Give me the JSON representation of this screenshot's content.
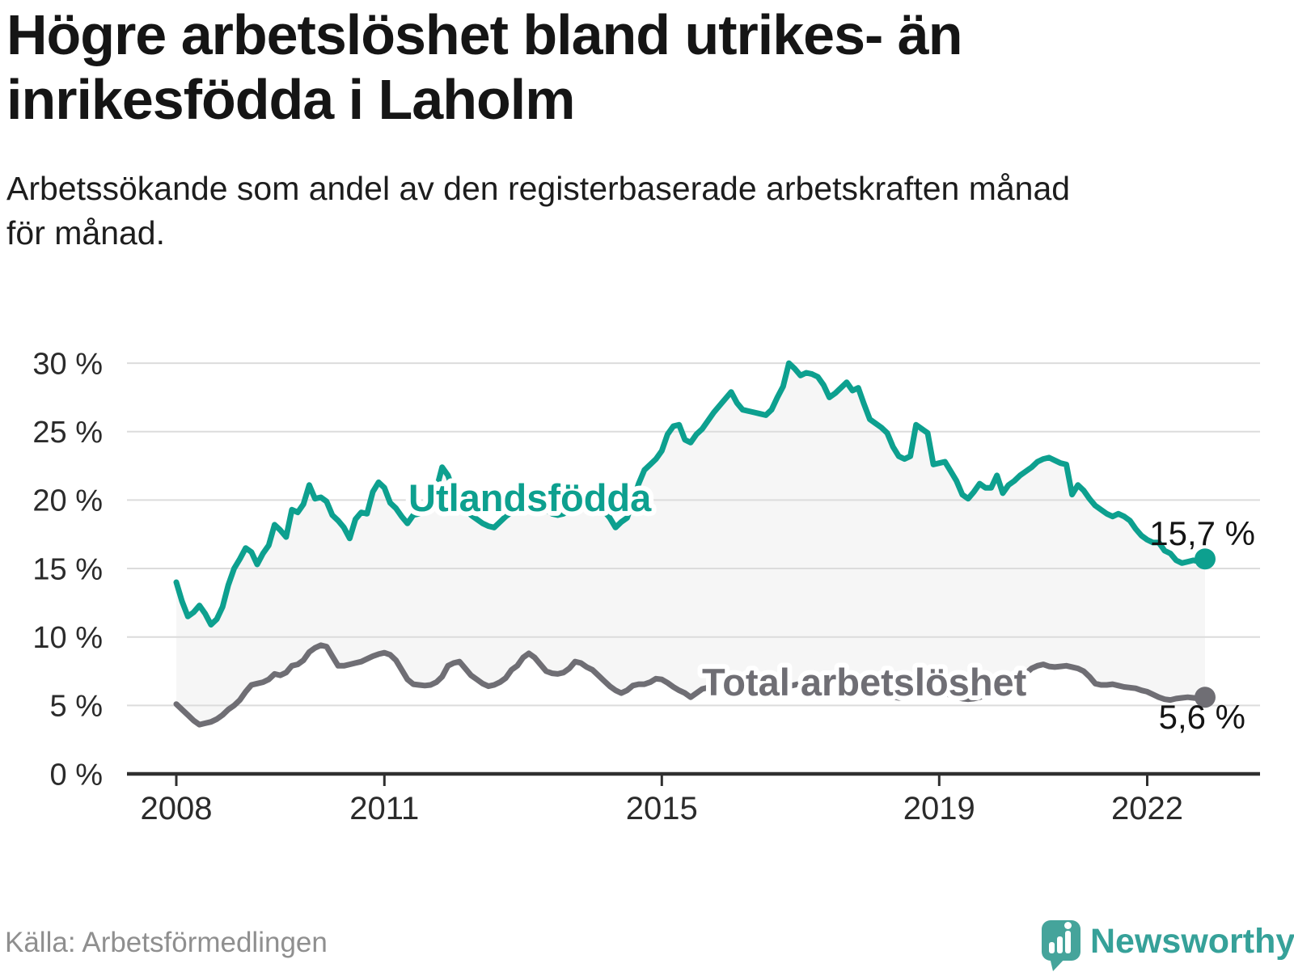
{
  "header": {
    "title": "Högre arbetslöshet bland utrikes- än\ninrikesfödda i Laholm",
    "subtitle": "Arbetssökande som andel av den registerbaserade arbetskraften månad\nför månad."
  },
  "footer": {
    "source": "Källa: Arbetsförmedlingen",
    "brand": "Newsworthy"
  },
  "colors": {
    "accent_teal": "#0da08f",
    "neutral_gray": "#6f6e74",
    "brand_teal": "#45a49b",
    "brand_text_teal": "#36a199",
    "gridline": "#dcdcdc",
    "axis": "#2f2f2f",
    "fill_between": "#f6f6f6",
    "title_text": "#151515",
    "source_text": "#8f8f8f"
  },
  "chart_data": {
    "type": "line",
    "x_frequency": "monthly",
    "x_start": "2008-01",
    "x_end": "2022-11",
    "points_per_series": 179,
    "x_tick_labels": [
      "2008",
      "2011",
      "2015",
      "2019",
      "2022"
    ],
    "x_tick_month_index": [
      0,
      36,
      84,
      132,
      168
    ],
    "y_tick_labels": [
      "0 %",
      "5 %",
      "10 %",
      "15 %",
      "20 %",
      "25 %",
      "30 %"
    ],
    "y_tick_values": [
      0,
      5,
      10,
      15,
      20,
      25,
      30
    ],
    "ylim": [
      0,
      31.8
    ],
    "grid": "horizontal",
    "legend": "inline-labels",
    "fill_between": true,
    "series": [
      {
        "name": "Utlandsfödda",
        "color": "#0da08f",
        "end_label": "15,7 %",
        "end_value": 15.7,
        "values": [
          14,
          12.6,
          11.5,
          11.8,
          12.3,
          11.7,
          10.9,
          11.3,
          12.2,
          13.8,
          15,
          15.7,
          16.5,
          16.2,
          15.3,
          16.1,
          16.7,
          18.2,
          17.8,
          17.3,
          19.3,
          19.1,
          19.7,
          21.1,
          20.1,
          20.2,
          19.9,
          18.9,
          18.5,
          18,
          17.2,
          18.6,
          19.1,
          19,
          20.6,
          21.3,
          20.9,
          19.8,
          19.4,
          18.8,
          18.3,
          18.9,
          19,
          19.3,
          19.8,
          20.8,
          22.4,
          21.8,
          20.6,
          19.8,
          19.3,
          18.9,
          18.6,
          18.3,
          18.1,
          18,
          18.4,
          18.8,
          19.1,
          19.5,
          19.9,
          20.2,
          19.9,
          19.6,
          19.3,
          19,
          18.9,
          19,
          19.3,
          19.6,
          19.9,
          20.1,
          20,
          19.7,
          19.2,
          18.7,
          18,
          18.4,
          18.7,
          19.9,
          21.2,
          22.2,
          22.6,
          23,
          23.6,
          24.8,
          25.4,
          25.5,
          24.4,
          24.2,
          24.8,
          25.2,
          25.8,
          26.4,
          26.9,
          27.4,
          27.9,
          27.1,
          26.6,
          26.5,
          26.4,
          26.3,
          26.2,
          26.6,
          27.5,
          28.3,
          30,
          29.6,
          29.1,
          29.3,
          29.2,
          29,
          28.4,
          27.5,
          27.8,
          28.2,
          28.6,
          28,
          28.2,
          27,
          25.9,
          25.6,
          25.3,
          24.9,
          23.9,
          23.2,
          23,
          23.2,
          25.5,
          25.2,
          24.9,
          22.6,
          22.7,
          22.8,
          22.1,
          21.4,
          20.4,
          20.1,
          20.6,
          21.2,
          20.9,
          20.9,
          21.8,
          20.5,
          21.1,
          21.4,
          21.8,
          22.1,
          22.4,
          22.8,
          23,
          23.1,
          22.9,
          22.7,
          22.6,
          20.4,
          21.1,
          20.7,
          20.1,
          19.6,
          19.3,
          19,
          18.8,
          19,
          18.8,
          18.5,
          17.9,
          17.4,
          17.1,
          16.9,
          16.9,
          16.3,
          16.1,
          15.6,
          15.4,
          15.5,
          15.6,
          15.5,
          15.7
        ]
      },
      {
        "name": "Total arbetslöshet",
        "color": "#6f6e74",
        "end_label": "5,6 %",
        "end_value": 5.6,
        "values": [
          5.1,
          4.7,
          4.3,
          3.9,
          3.6,
          3.7,
          3.8,
          4,
          4.3,
          4.7,
          5,
          5.4,
          6,
          6.5,
          6.6,
          6.7,
          6.9,
          7.3,
          7.2,
          7.4,
          7.9,
          8,
          8.3,
          8.9,
          9.2,
          9.4,
          9.3,
          8.6,
          7.9,
          7.9,
          8,
          8.1,
          8.2,
          8.4,
          8.6,
          8.75,
          8.85,
          8.7,
          8.3,
          7.6,
          6.9,
          6.55,
          6.5,
          6.45,
          6.5,
          6.7,
          7.1,
          7.9,
          8.1,
          8.2,
          7.7,
          7.2,
          6.9,
          6.6,
          6.4,
          6.5,
          6.7,
          7,
          7.6,
          7.9,
          8.5,
          8.8,
          8.5,
          8,
          7.5,
          7.35,
          7.3,
          7.4,
          7.7,
          8.2,
          8.1,
          7.8,
          7.6,
          7.2,
          6.8,
          6.4,
          6.1,
          5.9,
          6.1,
          6.45,
          6.55,
          6.55,
          6.7,
          6.95,
          6.9,
          6.65,
          6.35,
          6.1,
          5.9,
          5.6,
          5.9,
          6.2,
          6.3,
          6.4,
          6.5,
          6.6,
          6.8,
          6.9,
          6.7,
          6.5,
          6.3,
          6.1,
          6,
          6.1,
          6.2,
          6.3,
          6.4,
          6.5,
          6.6,
          6.7,
          6.5,
          6.3,
          6.1,
          6,
          5.9,
          6,
          6,
          6.1,
          6.2,
          6.3,
          6.2,
          6.1,
          5.9,
          5.8,
          5.65,
          5.55,
          5.6,
          5.7,
          5.8,
          5.9,
          6,
          6.1,
          6,
          5.9,
          5.75,
          5.6,
          5.5,
          5.45,
          5.5,
          5.6,
          5.75,
          5.85,
          5.9,
          6,
          6.1,
          6.3,
          6.9,
          7.35,
          7.7,
          7.9,
          8,
          7.85,
          7.8,
          7.85,
          7.9,
          7.8,
          7.7,
          7.5,
          7.1,
          6.6,
          6.5,
          6.5,
          6.55,
          6.45,
          6.35,
          6.3,
          6.25,
          6.1,
          6,
          5.8,
          5.6,
          5.45,
          5.4,
          5.5,
          5.55,
          5.6,
          5.55,
          5.5,
          5.6
        ]
      }
    ]
  }
}
